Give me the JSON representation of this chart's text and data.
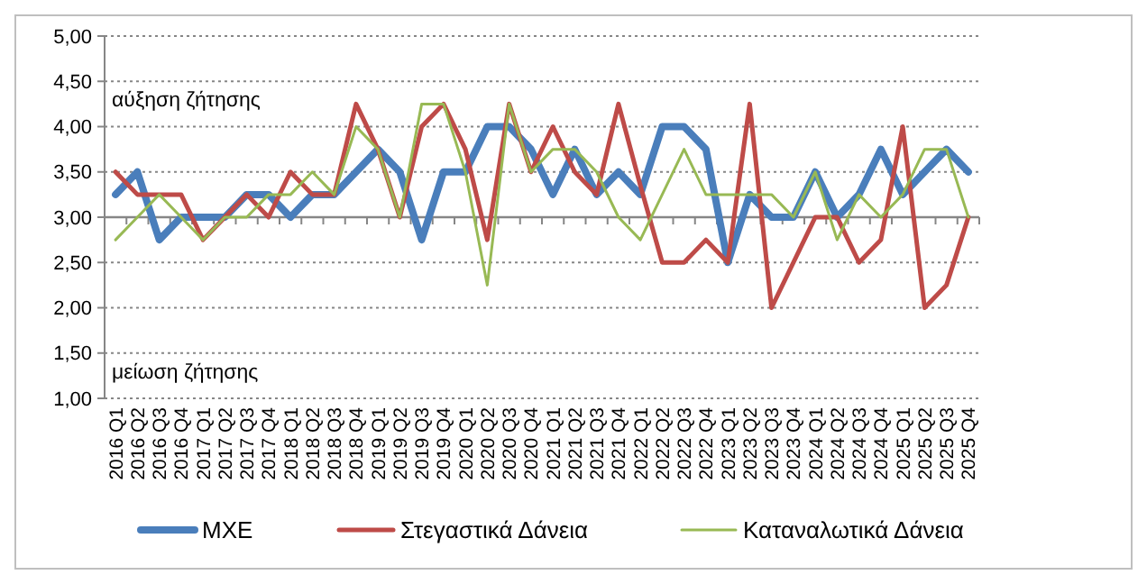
{
  "chart_data": {
    "type": "line",
    "categories": [
      "2016 Q1",
      "2016 Q2",
      "2016 Q3",
      "2016 Q4",
      "2017 Q1",
      "2017 Q2",
      "2017 Q3",
      "2017 Q4",
      "2018 Q1",
      "2018 Q2",
      "2018 Q3",
      "2018 Q4",
      "2019 Q1",
      "2019 Q2",
      "2019 Q3",
      "2019 Q4",
      "2020 Q1",
      "2020 Q2",
      "2020 Q3",
      "2020 Q4",
      "2021 Q1",
      "2021 Q2",
      "2021 Q3",
      "2021 Q4",
      "2022 Q1",
      "2022 Q2",
      "2022 Q3",
      "2022 Q4",
      "2023 Q1",
      "2023 Q2",
      "2023 Q3",
      "2023 Q4",
      "2024 Q1",
      "2024 Q2",
      "2024 Q3",
      "2024 Q4",
      "2025 Q1",
      "2025 Q2",
      "2025 Q3",
      "2025 Q4"
    ],
    "series": [
      {
        "name": "ΜΧΕ",
        "color": "#4a7ebb",
        "values": [
          3.25,
          3.5,
          2.75,
          3.0,
          3.0,
          3.0,
          3.25,
          3.25,
          3.0,
          3.25,
          3.25,
          3.5,
          3.75,
          3.5,
          2.75,
          3.5,
          3.5,
          4.0,
          4.0,
          3.75,
          3.25,
          3.75,
          3.25,
          3.5,
          3.25,
          4.0,
          4.0,
          3.75,
          2.5,
          3.25,
          3.0,
          3.0,
          3.5,
          3.0,
          3.25,
          3.75,
          3.25,
          3.5,
          3.75,
          3.5
        ]
      },
      {
        "name": "Στεγαστικά Δάνεια",
        "color": "#be4b48",
        "values": [
          3.5,
          3.25,
          3.25,
          3.25,
          2.75,
          3.0,
          3.25,
          3.0,
          3.5,
          3.25,
          3.25,
          4.25,
          3.75,
          3.0,
          4.0,
          4.25,
          3.75,
          2.75,
          4.25,
          3.5,
          4.0,
          3.5,
          3.25,
          4.25,
          3.35,
          2.5,
          2.5,
          2.75,
          2.5,
          4.25,
          2.0,
          2.5,
          3.0,
          3.0,
          2.5,
          2.75,
          4.0,
          2.0,
          2.25,
          3.0
        ]
      },
      {
        "name": "Καταναλωτικά Δάνεια",
        "color": "#98b954",
        "values": [
          2.75,
          3.0,
          3.25,
          3.0,
          2.75,
          3.0,
          3.0,
          3.25,
          3.25,
          3.5,
          3.25,
          4.0,
          3.75,
          3.0,
          4.25,
          4.25,
          3.5,
          2.25,
          4.25,
          3.5,
          3.75,
          3.75,
          3.5,
          3.0,
          2.75,
          3.25,
          3.75,
          3.25,
          3.25,
          3.25,
          3.25,
          3.0,
          3.5,
          2.75,
          3.25,
          3.0,
          3.25,
          3.75,
          3.75,
          3.0
        ]
      }
    ],
    "ylim": [
      1,
      5
    ],
    "yticks": [
      {
        "value": 1,
        "label": "1,00"
      },
      {
        "value": 1.5,
        "label": "1,50"
      },
      {
        "value": 2,
        "label": "2,00"
      },
      {
        "value": 2.5,
        "label": "2,50"
      },
      {
        "value": 3,
        "label": "3,00"
      },
      {
        "value": 3.5,
        "label": "3,50"
      },
      {
        "value": 4,
        "label": "4,00"
      },
      {
        "value": 4.5,
        "label": "4,50"
      },
      {
        "value": 5,
        "label": "5,00"
      }
    ],
    "ref_lines": [
      {
        "axis": "y",
        "value": 3,
        "color": "#868686"
      }
    ],
    "annotations": [
      "αύξηση ζήτησης",
      "μείωση ζήτησης"
    ],
    "grid": "y",
    "legend": "bottom",
    "marker": "none",
    "line_style": "solid"
  }
}
